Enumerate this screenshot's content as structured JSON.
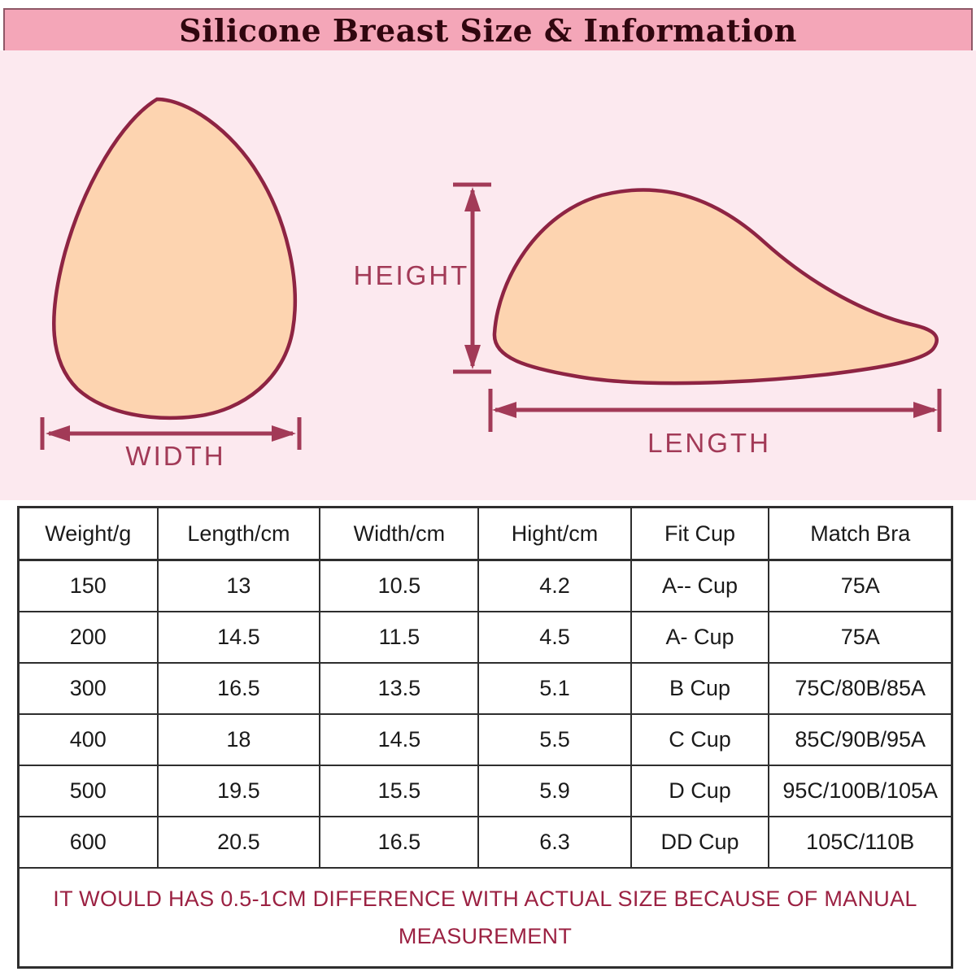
{
  "title": "Silicone Breast Size & Information",
  "diagram": {
    "width_label": "WIDTH",
    "height_label": "HEIGHT",
    "length_label": "LENGTH"
  },
  "table": {
    "headers": [
      "Weight/g",
      "Length/cm",
      "Width/cm",
      "Hight/cm",
      "Fit Cup",
      "Match Bra"
    ],
    "rows": [
      [
        "150",
        "13",
        "10.5",
        "4.2",
        "A-- Cup",
        "75A"
      ],
      [
        "200",
        "14.5",
        "11.5",
        "4.5",
        "A- Cup",
        "75A"
      ],
      [
        "300",
        "16.5",
        "13.5",
        "5.1",
        "B Cup",
        "75C/80B/85A"
      ],
      [
        "400",
        "18",
        "14.5",
        "5.5",
        "C Cup",
        "85C/90B/95A"
      ],
      [
        "500",
        "19.5",
        "15.5",
        "5.9",
        "D Cup",
        "95C/100B/105A"
      ],
      [
        "600",
        "20.5",
        "16.5",
        "6.3",
        "DD Cup",
        "105C/110B"
      ]
    ]
  },
  "note": {
    "line1": "IT WOULD HAS 0.5-1CM DIFFERENCE WITH ACTUAL SIZE BECAUSE OF MANUAL",
    "line2": "MEASUREMENT"
  },
  "colors": {
    "banner_fill": "#F4A6B8",
    "banner_border": "#8E5766",
    "title_text": "#30060F",
    "diagram_background": "#FCE9EF",
    "shape_fill": "#FDD4B0",
    "shape_outline": "#8E2443",
    "dimension_accent": "#A23A57",
    "table_border": "#2E2E2E",
    "table_text": "#1A1A1A",
    "note_text": "#9B2142"
  }
}
